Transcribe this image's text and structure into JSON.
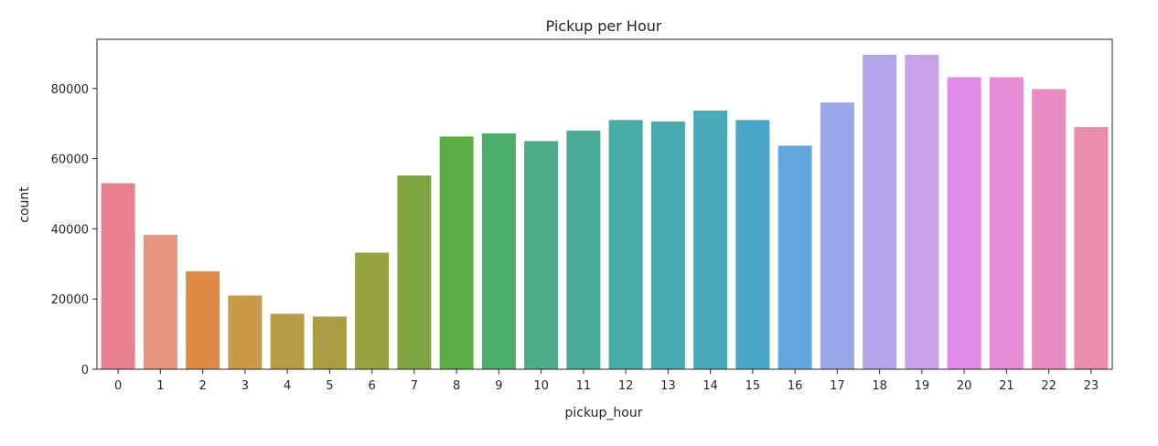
{
  "chart_data": {
    "type": "bar",
    "title": "Pickup per Hour",
    "xlabel": "pickup_hour",
    "ylabel": "count",
    "categories": [
      "0",
      "1",
      "2",
      "3",
      "4",
      "5",
      "6",
      "7",
      "8",
      "9",
      "10",
      "11",
      "12",
      "13",
      "14",
      "15",
      "16",
      "17",
      "18",
      "19",
      "20",
      "21",
      "22",
      "23"
    ],
    "values": [
      53000,
      38300,
      27900,
      21000,
      15800,
      15000,
      33200,
      55200,
      66300,
      67200,
      65000,
      68000,
      71000,
      70600,
      73700,
      71000,
      63700,
      76000,
      89600,
      89600,
      83200,
      83200,
      79800,
      69000
    ],
    "colors": [
      "#e8808f",
      "#e8957f",
      "#e08b44",
      "#c99a45",
      "#b89b45",
      "#a99c43",
      "#97a240",
      "#7ea441",
      "#59ae44",
      "#4aad6a",
      "#4aad88",
      "#4aab9a",
      "#48aba6",
      "#48aaae",
      "#48a9b8",
      "#4aa6c8",
      "#62a6de",
      "#9aa6e8",
      "#b4a4e8",
      "#caa0e8",
      "#e08be6",
      "#e68bd6",
      "#ea8cc2",
      "#ea8cab"
    ],
    "yticks": [
      0,
      20000,
      40000,
      60000,
      80000
    ],
    "ytick_labels": [
      "0",
      "20000",
      "40000",
      "60000",
      "80000"
    ],
    "ylim": [
      0,
      94000
    ],
    "grid": false,
    "legend": "none"
  }
}
